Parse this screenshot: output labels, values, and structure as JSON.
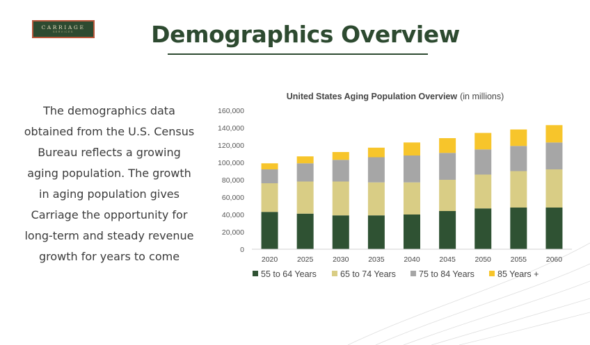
{
  "logo": {
    "main": "CARRIAGE",
    "sub": "SERVICES"
  },
  "page": {
    "title": "Demographics Overview",
    "body": "The demographics data obtained from the U.S. Census Bureau reflects a growing aging population. The growth in aging population gives Carriage the opportunity for long-term and steady revenue growth for years to come"
  },
  "chart_data": {
    "type": "bar",
    "stacked": true,
    "title": "United States Aging Population Overview",
    "subtitle": "(in millions)",
    "categories": [
      "2020",
      "2025",
      "2030",
      "2035",
      "2040",
      "2045",
      "2050",
      "2055",
      "2060"
    ],
    "series": [
      {
        "name": "55 to 64 Years",
        "color": "#2f5233",
        "values": [
          43000,
          41000,
          39000,
          39000,
          40000,
          44000,
          47000,
          48000,
          48000
        ]
      },
      {
        "name": "65 to 74 Years",
        "color": "#d9cd85",
        "values": [
          33000,
          37000,
          39000,
          38000,
          37000,
          36000,
          39000,
          42000,
          44000
        ]
      },
      {
        "name": "75 to 84 Years",
        "color": "#a6a6a6",
        "values": [
          16000,
          21000,
          25000,
          29000,
          31000,
          31000,
          29000,
          29000,
          31000
        ]
      },
      {
        "name": "85 Years +",
        "color": "#f7c52b",
        "values": [
          7000,
          8000,
          9000,
          11000,
          15000,
          17000,
          19000,
          19000,
          20000
        ]
      }
    ],
    "ylim": [
      0,
      160000
    ],
    "yticks": [
      "0",
      "20,000",
      "40,000",
      "60,000",
      "80,000",
      "100,000",
      "120,000",
      "140,000",
      "160,000"
    ],
    "legend_position": "bottom",
    "grid": false
  }
}
